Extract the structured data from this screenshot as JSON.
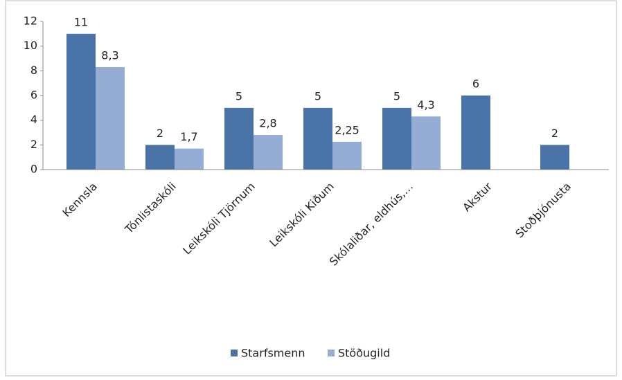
{
  "chart_data": {
    "type": "bar",
    "categories": [
      "Kennsla",
      "Tónlistaskóli",
      "Leikskóli Tjörnum",
      "Leikskóli Kiðum",
      "Skólaliðar, eldhús,…",
      "Akstur",
      "Stoðþjónusta"
    ],
    "series": [
      {
        "name": "Starfsmenn",
        "color": "#4a74a8",
        "values": [
          11,
          2,
          5,
          5,
          5,
          6,
          2
        ]
      },
      {
        "name": "Stöðugild",
        "color": "#95acd4",
        "values": [
          8.3,
          1.7,
          2.8,
          2.25,
          4.3,
          null,
          null
        ],
        "value_labels": [
          "8,3",
          "1,7",
          "2,8",
          "2,25",
          "4,3",
          null,
          null
        ]
      }
    ],
    "ylim": [
      0,
      12
    ],
    "yticks": [
      0,
      2,
      4,
      6,
      8,
      10,
      12
    ],
    "grid": false,
    "legend": "bottom"
  }
}
